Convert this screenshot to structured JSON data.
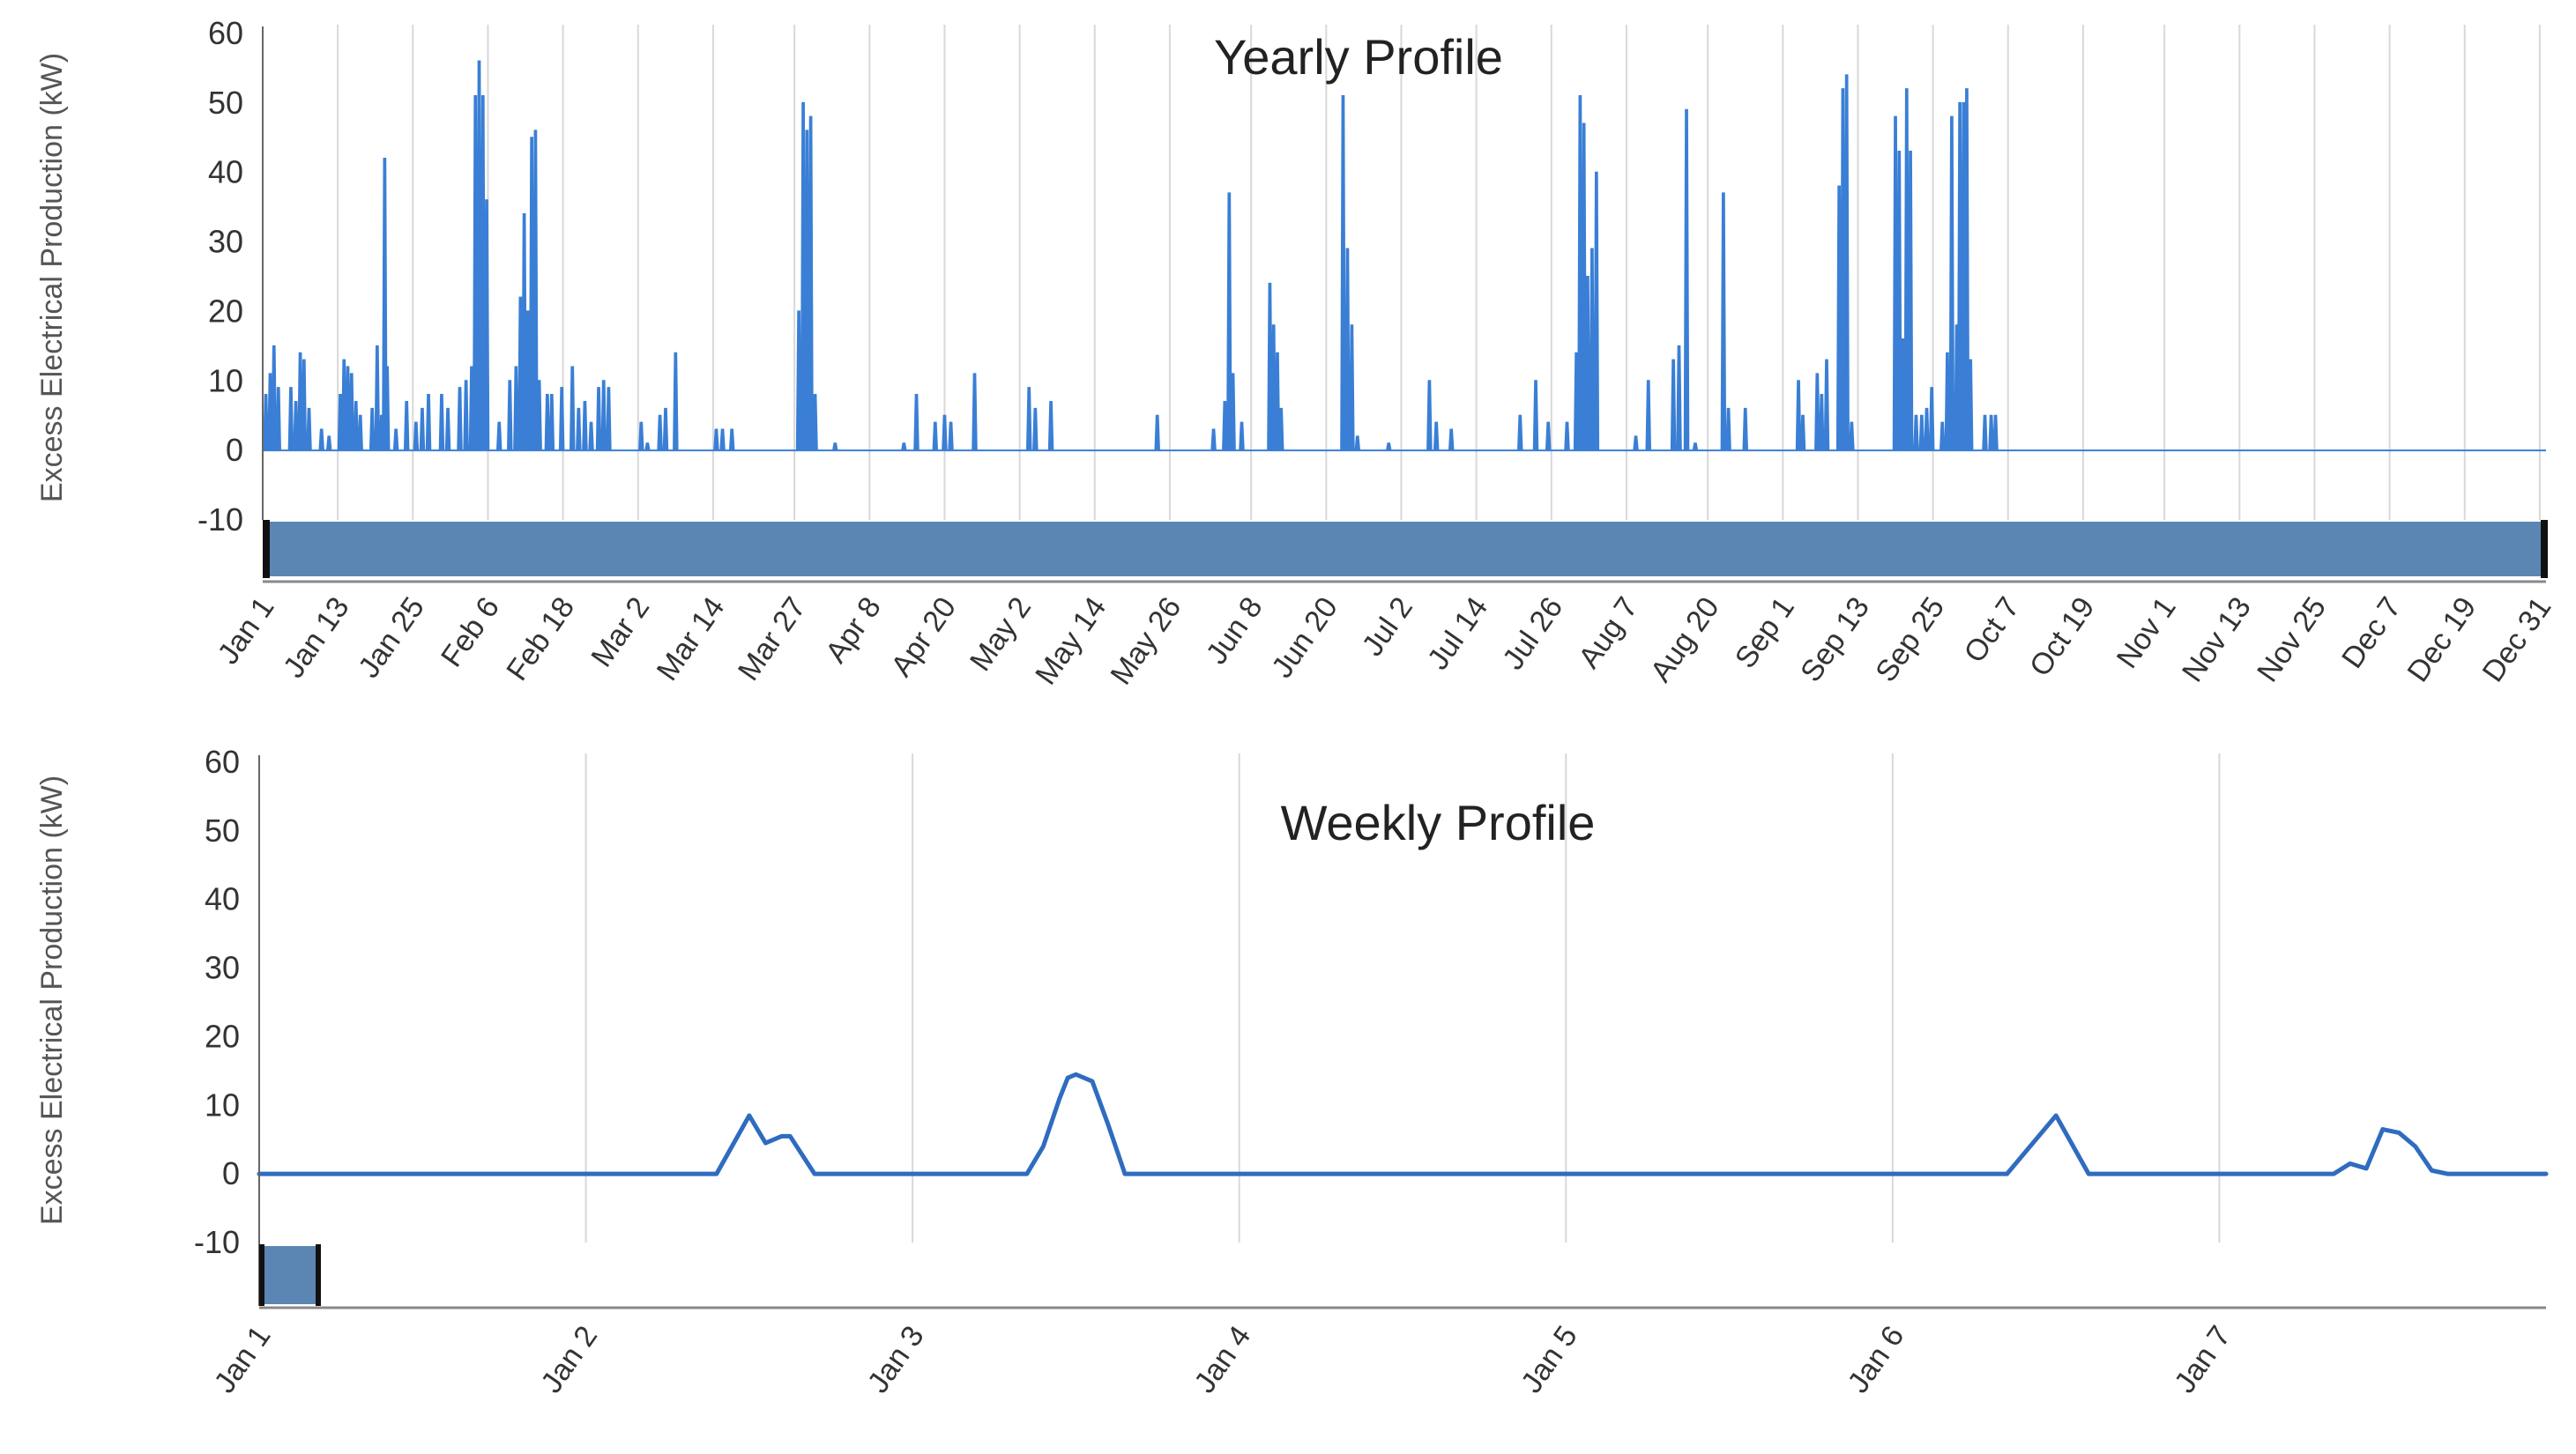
{
  "chart_data": [
    {
      "type": "area",
      "title": "Yearly Profile",
      "ylabel": "Excess Electrical Production (kW)",
      "xlabel": "",
      "ylim": [
        -10,
        60
      ],
      "yticks": [
        60,
        50,
        40,
        30,
        20,
        10,
        0,
        -10
      ],
      "xlim": [
        0,
        365
      ],
      "grid": true,
      "legend": "none",
      "color": "#3a7fd5",
      "navigator_color": "#5b86b4",
      "tick_labels": [
        "Jan 1",
        "Jan 13",
        "Jan 25",
        "Feb 6",
        "Feb 18",
        "Mar 2",
        "Mar 14",
        "Mar 27",
        "Apr 8",
        "Apr 20",
        "May 2",
        "May 14",
        "May 26",
        "Jun 8",
        "Jun 20",
        "Jul 2",
        "Jul 14",
        "Jul 26",
        "Aug 7",
        "Aug 20",
        "Sep 1",
        "Sep 13",
        "Sep 25",
        "Oct 7",
        "Oct 19",
        "Nov 1",
        "Nov 13",
        "Nov 25",
        "Dec 7",
        "Dec 19",
        "Dec 31"
      ],
      "tick_days": [
        0,
        12,
        24,
        36,
        48,
        60,
        72,
        85,
        97,
        109,
        121,
        133,
        145,
        158,
        170,
        182,
        194,
        206,
        218,
        231,
        243,
        255,
        267,
        279,
        291,
        304,
        316,
        328,
        340,
        352,
        364
      ],
      "peaks": [
        {
          "day": 0.5,
          "kW": 8
        },
        {
          "day": 1.2,
          "kW": 11
        },
        {
          "day": 1.8,
          "kW": 15
        },
        {
          "day": 2.5,
          "kW": 9
        },
        {
          "day": 4.5,
          "kW": 9
        },
        {
          "day": 5.3,
          "kW": 7
        },
        {
          "day": 6.0,
          "kW": 14
        },
        {
          "day": 6.6,
          "kW": 13
        },
        {
          "day": 7.4,
          "kW": 6
        },
        {
          "day": 9.4,
          "kW": 3
        },
        {
          "day": 10.6,
          "kW": 2
        },
        {
          "day": 12.4,
          "kW": 8
        },
        {
          "day": 13.0,
          "kW": 13
        },
        {
          "day": 13.6,
          "kW": 12
        },
        {
          "day": 14.2,
          "kW": 11
        },
        {
          "day": 14.9,
          "kW": 7
        },
        {
          "day": 15.6,
          "kW": 5
        },
        {
          "day": 17.5,
          "kW": 6
        },
        {
          "day": 18.3,
          "kW": 15
        },
        {
          "day": 19.0,
          "kW": 5
        },
        {
          "day": 19.5,
          "kW": 42
        },
        {
          "day": 19.9,
          "kW": 12
        },
        {
          "day": 21.3,
          "kW": 3
        },
        {
          "day": 23.0,
          "kW": 7
        },
        {
          "day": 24.5,
          "kW": 4
        },
        {
          "day": 25.5,
          "kW": 6
        },
        {
          "day": 26.5,
          "kW": 8
        },
        {
          "day": 28.6,
          "kW": 8
        },
        {
          "day": 29.6,
          "kW": 6
        },
        {
          "day": 31.5,
          "kW": 9
        },
        {
          "day": 32.5,
          "kW": 10
        },
        {
          "day": 33.4,
          "kW": 12
        },
        {
          "day": 34.0,
          "kW": 51
        },
        {
          "day": 34.6,
          "kW": 56
        },
        {
          "day": 35.2,
          "kW": 51
        },
        {
          "day": 35.8,
          "kW": 36
        },
        {
          "day": 37.8,
          "kW": 4
        },
        {
          "day": 39.5,
          "kW": 10
        },
        {
          "day": 40.5,
          "kW": 12
        },
        {
          "day": 41.2,
          "kW": 22
        },
        {
          "day": 41.8,
          "kW": 34
        },
        {
          "day": 42.4,
          "kW": 20
        },
        {
          "day": 43.0,
          "kW": 45
        },
        {
          "day": 43.6,
          "kW": 46
        },
        {
          "day": 44.2,
          "kW": 10
        },
        {
          "day": 45.5,
          "kW": 8
        },
        {
          "day": 46.2,
          "kW": 8
        },
        {
          "day": 47.8,
          "kW": 9
        },
        {
          "day": 49.5,
          "kW": 12
        },
        {
          "day": 50.5,
          "kW": 6
        },
        {
          "day": 51.5,
          "kW": 7
        },
        {
          "day": 52.5,
          "kW": 4
        },
        {
          "day": 53.7,
          "kW": 9
        },
        {
          "day": 54.5,
          "kW": 10
        },
        {
          "day": 55.3,
          "kW": 9
        },
        {
          "day": 60.5,
          "kW": 4
        },
        {
          "day": 61.5,
          "kW": 1
        },
        {
          "day": 63.5,
          "kW": 5
        },
        {
          "day": 64.4,
          "kW": 6
        },
        {
          "day": 66.0,
          "kW": 14
        },
        {
          "day": 72.5,
          "kW": 3
        },
        {
          "day": 73.5,
          "kW": 3
        },
        {
          "day": 75.0,
          "kW": 3
        },
        {
          "day": 85.7,
          "kW": 20
        },
        {
          "day": 86.4,
          "kW": 50
        },
        {
          "day": 87.0,
          "kW": 46
        },
        {
          "day": 87.6,
          "kW": 48
        },
        {
          "day": 88.3,
          "kW": 8
        },
        {
          "day": 91.5,
          "kW": 1
        },
        {
          "day": 102.5,
          "kW": 1
        },
        {
          "day": 104.5,
          "kW": 8
        },
        {
          "day": 107.5,
          "kW": 4
        },
        {
          "day": 109.0,
          "kW": 5
        },
        {
          "day": 110.0,
          "kW": 4
        },
        {
          "day": 113.8,
          "kW": 11
        },
        {
          "day": 122.5,
          "kW": 9
        },
        {
          "day": 123.5,
          "kW": 6
        },
        {
          "day": 126.0,
          "kW": 7
        },
        {
          "day": 143.0,
          "kW": 5
        },
        {
          "day": 152.0,
          "kW": 3
        },
        {
          "day": 153.8,
          "kW": 7
        },
        {
          "day": 154.5,
          "kW": 37
        },
        {
          "day": 155.1,
          "kW": 11
        },
        {
          "day": 156.5,
          "kW": 4
        },
        {
          "day": 161.0,
          "kW": 24
        },
        {
          "day": 161.6,
          "kW": 18
        },
        {
          "day": 162.2,
          "kW": 14
        },
        {
          "day": 162.8,
          "kW": 6
        },
        {
          "day": 172.7,
          "kW": 51
        },
        {
          "day": 173.4,
          "kW": 29
        },
        {
          "day": 174.1,
          "kW": 18
        },
        {
          "day": 175.0,
          "kW": 2
        },
        {
          "day": 180.0,
          "kW": 1
        },
        {
          "day": 186.5,
          "kW": 10
        },
        {
          "day": 187.6,
          "kW": 4
        },
        {
          "day": 190.0,
          "kW": 3
        },
        {
          "day": 201.0,
          "kW": 5
        },
        {
          "day": 203.5,
          "kW": 10
        },
        {
          "day": 205.5,
          "kW": 4
        },
        {
          "day": 208.5,
          "kW": 4
        },
        {
          "day": 210.0,
          "kW": 14
        },
        {
          "day": 210.6,
          "kW": 51
        },
        {
          "day": 211.2,
          "kW": 47
        },
        {
          "day": 211.8,
          "kW": 25
        },
        {
          "day": 212.5,
          "kW": 29
        },
        {
          "day": 213.2,
          "kW": 40
        },
        {
          "day": 219.5,
          "kW": 2
        },
        {
          "day": 221.5,
          "kW": 10
        },
        {
          "day": 225.5,
          "kW": 13
        },
        {
          "day": 226.4,
          "kW": 15
        },
        {
          "day": 227.6,
          "kW": 49
        },
        {
          "day": 229.0,
          "kW": 1
        },
        {
          "day": 233.5,
          "kW": 37
        },
        {
          "day": 234.3,
          "kW": 6
        },
        {
          "day": 237.0,
          "kW": 6
        },
        {
          "day": 245.5,
          "kW": 10
        },
        {
          "day": 246.2,
          "kW": 5
        },
        {
          "day": 248.5,
          "kW": 11
        },
        {
          "day": 249.2,
          "kW": 8
        },
        {
          "day": 250.0,
          "kW": 13
        },
        {
          "day": 252.0,
          "kW": 38
        },
        {
          "day": 252.6,
          "kW": 52
        },
        {
          "day": 253.2,
          "kW": 54
        },
        {
          "day": 254.0,
          "kW": 4
        },
        {
          "day": 261.0,
          "kW": 48
        },
        {
          "day": 261.6,
          "kW": 43
        },
        {
          "day": 262.2,
          "kW": 16
        },
        {
          "day": 262.8,
          "kW": 52
        },
        {
          "day": 263.4,
          "kW": 43
        },
        {
          "day": 264.3,
          "kW": 5
        },
        {
          "day": 265.2,
          "kW": 5
        },
        {
          "day": 266.0,
          "kW": 6
        },
        {
          "day": 266.8,
          "kW": 9
        },
        {
          "day": 268.5,
          "kW": 4
        },
        {
          "day": 269.3,
          "kW": 14
        },
        {
          "day": 270.0,
          "kW": 48
        },
        {
          "day": 270.8,
          "kW": 18
        },
        {
          "day": 271.3,
          "kW": 50
        },
        {
          "day": 271.9,
          "kW": 50
        },
        {
          "day": 272.4,
          "kW": 52
        },
        {
          "day": 273.0,
          "kW": 13
        },
        {
          "day": 275.3,
          "kW": 5
        },
        {
          "day": 276.3,
          "kW": 5
        },
        {
          "day": 277.0,
          "kW": 5
        }
      ]
    },
    {
      "type": "line",
      "title": "Weekly Profile",
      "ylabel": "Excess Electrical Production (kW)",
      "xlabel": "",
      "ylim": [
        -10,
        60
      ],
      "yticks": [
        60,
        50,
        40,
        30,
        20,
        10,
        0,
        -10
      ],
      "xlim": [
        0,
        7
      ],
      "grid": true,
      "legend": "none",
      "color": "#2f6cc0",
      "navigator_color": "#5b86b4",
      "x_tick_labels": [
        "Jan 1",
        "Jan 2",
        "Jan 3",
        "Jan 4",
        "Jan 5",
        "Jan 6",
        "Jan 7"
      ],
      "x_tick_days": [
        0,
        1,
        2,
        3,
        4,
        5,
        6
      ],
      "x": [
        0,
        1.4,
        1.5,
        1.55,
        1.6,
        1.625,
        1.7,
        2.35,
        2.4,
        2.45,
        2.475,
        2.5,
        2.55,
        2.6,
        2.65,
        3.0,
        4.0,
        5.0,
        5.35,
        5.5,
        5.6,
        6.0,
        6.35,
        6.4,
        6.45,
        6.5,
        6.55,
        6.6,
        6.65,
        6.7,
        7.0
      ],
      "y": [
        0,
        0,
        8.5,
        4.5,
        5.5,
        5.5,
        0,
        0,
        4,
        11,
        14,
        14.5,
        13.5,
        7,
        0,
        0,
        0,
        0,
        0,
        8.5,
        0,
        0,
        0,
        1.5,
        0.8,
        6.5,
        6,
        4,
        0.5,
        0,
        0
      ]
    }
  ]
}
